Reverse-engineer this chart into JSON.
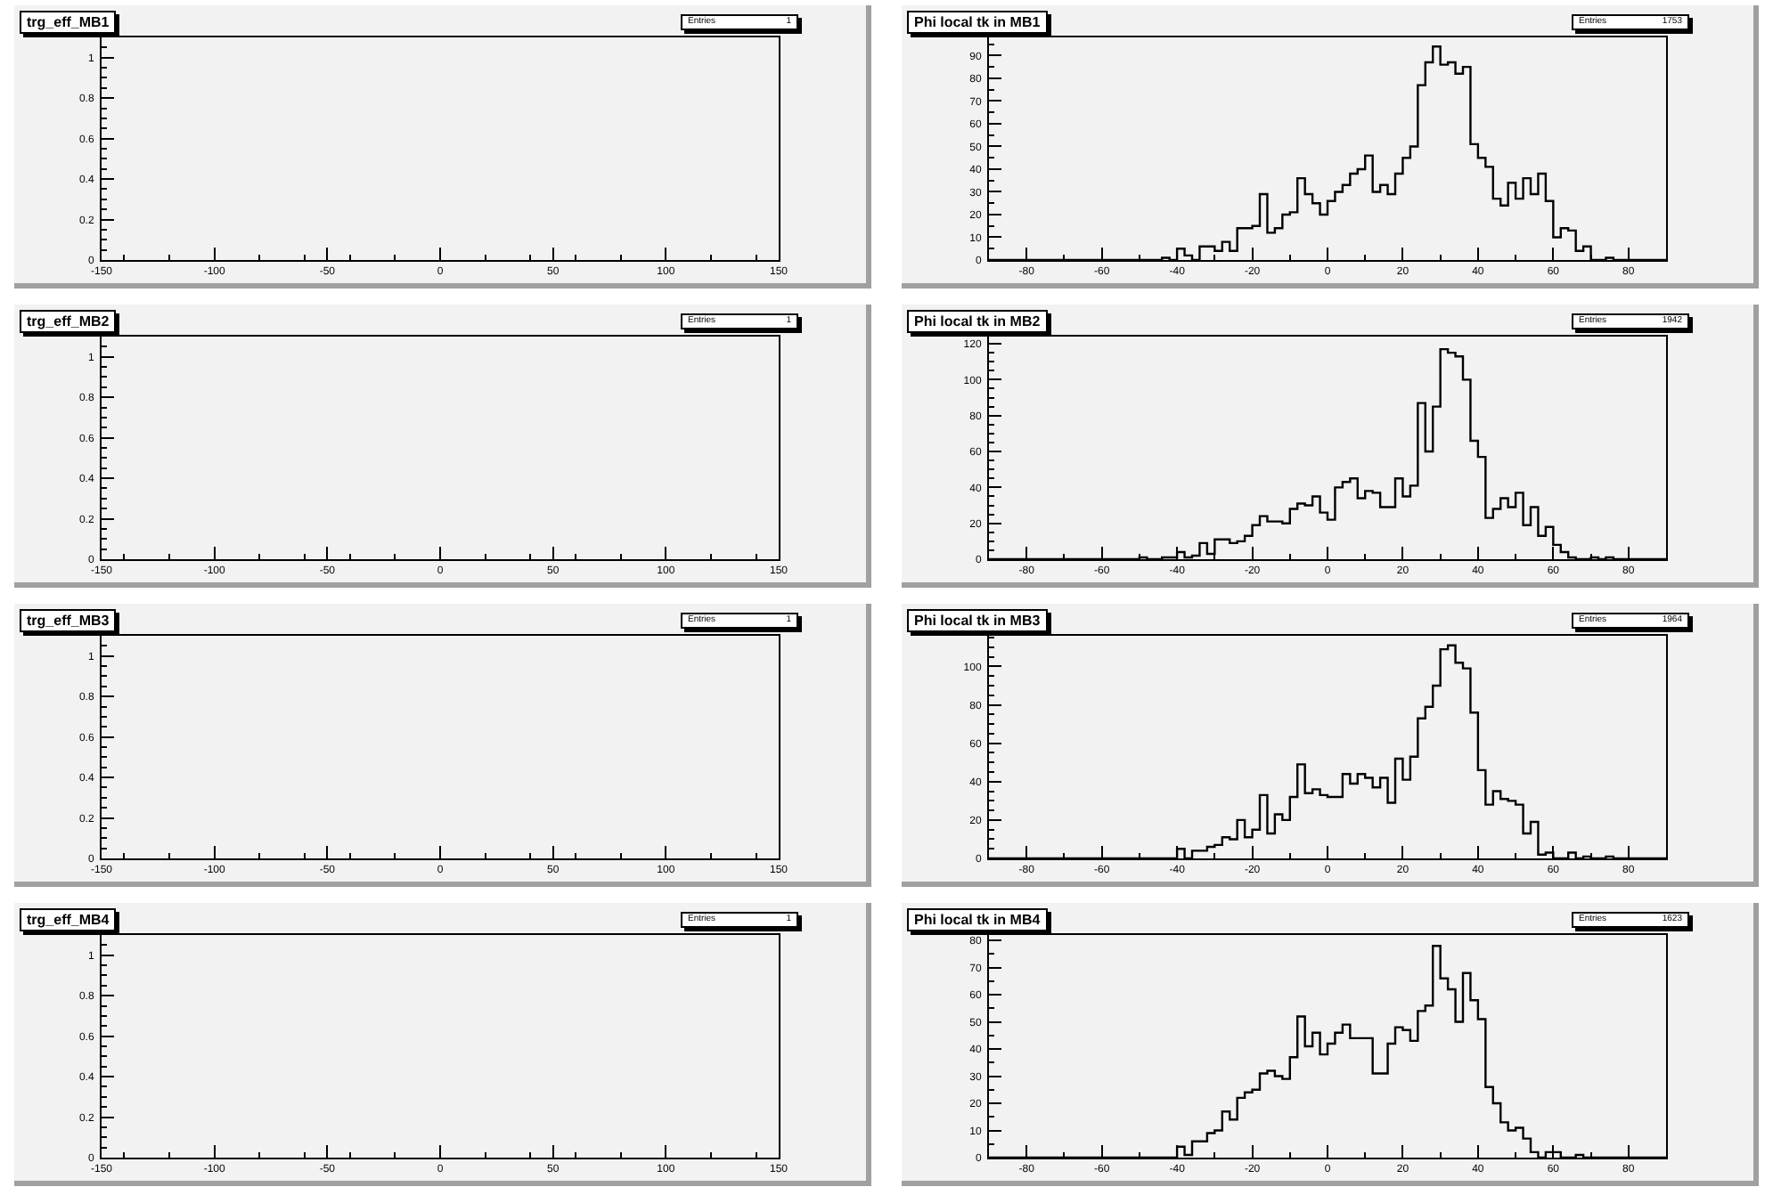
{
  "chart_data": [
    {
      "type": "histogram",
      "title": "trg_eff_MB1",
      "xlim": [
        -150,
        150
      ],
      "xticks": [
        -150,
        -100,
        -50,
        0,
        50,
        100,
        150
      ],
      "ylim": [
        0,
        1.1
      ],
      "yticks": [
        0,
        0.2,
        0.4,
        0.6,
        0.8,
        1
      ],
      "annotations": [
        "Entries",
        "1"
      ]
    },
    {
      "type": "histogram",
      "title": "Phi local tk in MB1",
      "bins": [
        -90,
        -88,
        -86,
        -84,
        -82,
        -80,
        -78,
        -76,
        -74,
        -72,
        -70,
        -68,
        -66,
        -64,
        -62,
        -60,
        -58,
        -56,
        -54,
        -52,
        -50,
        -48,
        -46,
        -44,
        -42,
        -40,
        -38,
        -36,
        -34,
        -32,
        -30,
        -28,
        -26,
        -24,
        -22,
        -20,
        -18,
        -16,
        -14,
        -12,
        -10,
        -8,
        -6,
        -4,
        -2,
        0,
        2,
        4,
        6,
        8,
        10,
        12,
        14,
        16,
        18,
        20,
        22,
        24,
        26,
        28,
        30,
        32,
        34,
        36,
        38,
        40,
        42,
        44,
        46,
        48,
        50,
        52,
        54,
        56,
        58,
        60,
        62,
        64,
        66,
        68,
        70,
        72,
        74,
        76,
        78,
        80,
        82,
        84,
        86,
        88,
        90
      ],
      "values": [
        0,
        0,
        0,
        0,
        0,
        0,
        0,
        0,
        0,
        0,
        0,
        0,
        0,
        0,
        0,
        0,
        0,
        0,
        0,
        0,
        0,
        0,
        0,
        1,
        0,
        5,
        2,
        0,
        6,
        6,
        4,
        8,
        4,
        14,
        14,
        15,
        29,
        12,
        14,
        20,
        21,
        36,
        29,
        25,
        20,
        26,
        30,
        33,
        38,
        40,
        46,
        30,
        33,
        29,
        38,
        45,
        50,
        77,
        87,
        94,
        86,
        87,
        82,
        85,
        51,
        45,
        41,
        27,
        24,
        34,
        27,
        36,
        29,
        38,
        26,
        10,
        14,
        13,
        4,
        6,
        0,
        0,
        1,
        0,
        0,
        0,
        0,
        0,
        0,
        0
      ],
      "color": "#000000",
      "xlim": [
        -90,
        90
      ],
      "xticks": [
        -80,
        -60,
        -40,
        -20,
        0,
        20,
        40,
        60,
        80
      ],
      "ylim": [
        0,
        98
      ],
      "yticks": [
        0,
        10,
        20,
        30,
        40,
        50,
        60,
        70,
        80,
        90
      ],
      "annotations": [
        "Entries",
        "1753"
      ]
    },
    {
      "type": "histogram",
      "title": "trg_eff_MB2",
      "xlim": [
        -150,
        150
      ],
      "xticks": [
        -150,
        -100,
        -50,
        0,
        50,
        100,
        150
      ],
      "ylim": [
        0,
        1.1
      ],
      "yticks": [
        0,
        0.2,
        0.4,
        0.6,
        0.8,
        1
      ],
      "annotations": [
        "Entries",
        "1"
      ]
    },
    {
      "type": "histogram",
      "title": "Phi local tk in MB2",
      "bins": [
        -90,
        -88,
        -86,
        -84,
        -82,
        -80,
        -78,
        -76,
        -74,
        -72,
        -70,
        -68,
        -66,
        -64,
        -62,
        -60,
        -58,
        -56,
        -54,
        -52,
        -50,
        -48,
        -46,
        -44,
        -42,
        -40,
        -38,
        -36,
        -34,
        -32,
        -30,
        -28,
        -26,
        -24,
        -22,
        -20,
        -18,
        -16,
        -14,
        -12,
        -10,
        -8,
        -6,
        -4,
        -2,
        0,
        2,
        4,
        6,
        8,
        10,
        12,
        14,
        16,
        18,
        20,
        22,
        24,
        26,
        28,
        30,
        32,
        34,
        36,
        38,
        40,
        42,
        44,
        46,
        48,
        50,
        52,
        54,
        56,
        58,
        60,
        62,
        64,
        66,
        68,
        70,
        72,
        74,
        76,
        78,
        80,
        82,
        84,
        86,
        88,
        90
      ],
      "values": [
        0,
        0,
        0,
        0,
        0,
        0,
        0,
        0,
        0,
        0,
        0,
        0,
        0,
        0,
        0,
        0,
        0,
        0,
        0,
        0,
        1,
        0,
        0,
        1,
        1,
        4,
        1,
        2,
        9,
        3,
        11,
        11,
        9,
        10,
        13,
        19,
        24,
        21,
        21,
        20,
        28,
        31,
        30,
        35,
        26,
        22,
        40,
        43,
        45,
        34,
        38,
        37,
        29,
        29,
        45,
        35,
        41,
        87,
        60,
        85,
        117,
        115,
        113,
        100,
        66,
        57,
        23,
        28,
        34,
        29,
        37,
        19,
        29,
        13,
        18,
        8,
        4,
        1,
        0,
        0,
        1,
        0,
        1,
        0,
        0,
        0,
        0,
        0,
        0,
        0
      ],
      "color": "#000000",
      "xlim": [
        -90,
        90
      ],
      "xticks": [
        -80,
        -60,
        -40,
        -20,
        0,
        20,
        40,
        60,
        80
      ],
      "ylim": [
        0,
        124
      ],
      "yticks": [
        0,
        20,
        40,
        60,
        80,
        100,
        120
      ],
      "annotations": [
        "Entries",
        "1942"
      ]
    },
    {
      "type": "histogram",
      "title": "trg_eff_MB3",
      "xlim": [
        -150,
        150
      ],
      "xticks": [
        -150,
        -100,
        -50,
        0,
        50,
        100,
        150
      ],
      "ylim": [
        0,
        1.1
      ],
      "yticks": [
        0,
        0.2,
        0.4,
        0.6,
        0.8,
        1
      ],
      "annotations": [
        "Entries",
        "1"
      ]
    },
    {
      "type": "histogram",
      "title": "Phi local tk in MB3",
      "bins": [
        -90,
        -88,
        -86,
        -84,
        -82,
        -80,
        -78,
        -76,
        -74,
        -72,
        -70,
        -68,
        -66,
        -64,
        -62,
        -60,
        -58,
        -56,
        -54,
        -52,
        -50,
        -48,
        -46,
        -44,
        -42,
        -40,
        -38,
        -36,
        -34,
        -32,
        -30,
        -28,
        -26,
        -24,
        -22,
        -20,
        -18,
        -16,
        -14,
        -12,
        -10,
        -8,
        -6,
        -4,
        -2,
        0,
        2,
        4,
        6,
        8,
        10,
        12,
        14,
        16,
        18,
        20,
        22,
        24,
        26,
        28,
        30,
        32,
        34,
        36,
        38,
        40,
        42,
        44,
        46,
        48,
        50,
        52,
        54,
        56,
        58,
        60,
        62,
        64,
        66,
        68,
        70,
        72,
        74,
        76,
        78,
        80,
        82,
        84,
        86,
        88,
        90
      ],
      "values": [
        0,
        0,
        0,
        0,
        0,
        0,
        0,
        0,
        0,
        0,
        0,
        0,
        0,
        0,
        0,
        0,
        0,
        0,
        0,
        0,
        0,
        0,
        0,
        0,
        0,
        5,
        0,
        4,
        4,
        6,
        7,
        11,
        10,
        20,
        11,
        15,
        33,
        13,
        23,
        20,
        32,
        49,
        34,
        36,
        33,
        32,
        32,
        44,
        39,
        44,
        42,
        37,
        42,
        29,
        52,
        41,
        53,
        73,
        79,
        90,
        109,
        111,
        102,
        99,
        76,
        46,
        28,
        35,
        31,
        30,
        28,
        13,
        19,
        2,
        3,
        0,
        0,
        3,
        0,
        1,
        0,
        0,
        1,
        0,
        0,
        0,
        0,
        0,
        0,
        0
      ],
      "color": "#000000",
      "xlim": [
        -90,
        90
      ],
      "xticks": [
        -80,
        -60,
        -40,
        -20,
        0,
        20,
        40,
        60,
        80
      ],
      "ylim": [
        0,
        116
      ],
      "yticks": [
        0,
        20,
        40,
        60,
        80,
        100
      ],
      "annotations": [
        "Entries",
        "1964"
      ]
    },
    {
      "type": "histogram",
      "title": "trg_eff_MB4",
      "xlim": [
        -150,
        150
      ],
      "xticks": [
        -150,
        -100,
        -50,
        0,
        50,
        100,
        150
      ],
      "ylim": [
        0,
        1.1
      ],
      "yticks": [
        0,
        0.2,
        0.4,
        0.6,
        0.8,
        1
      ],
      "annotations": [
        "Entries",
        "1"
      ]
    },
    {
      "type": "histogram",
      "title": "Phi local tk in MB4",
      "bins": [
        -90,
        -88,
        -86,
        -84,
        -82,
        -80,
        -78,
        -76,
        -74,
        -72,
        -70,
        -68,
        -66,
        -64,
        -62,
        -60,
        -58,
        -56,
        -54,
        -52,
        -50,
        -48,
        -46,
        -44,
        -42,
        -40,
        -38,
        -36,
        -34,
        -32,
        -30,
        -28,
        -26,
        -24,
        -22,
        -20,
        -18,
        -16,
        -14,
        -12,
        -10,
        -8,
        -6,
        -4,
        -2,
        0,
        2,
        4,
        6,
        8,
        10,
        12,
        14,
        16,
        18,
        20,
        22,
        24,
        26,
        28,
        30,
        32,
        34,
        36,
        38,
        40,
        42,
        44,
        46,
        48,
        50,
        52,
        54,
        56,
        58,
        60,
        62,
        64,
        66,
        68,
        70,
        72,
        74,
        76,
        78,
        80,
        82,
        84,
        86,
        88,
        90
      ],
      "values": [
        0,
        0,
        0,
        0,
        0,
        0,
        0,
        0,
        0,
        0,
        0,
        0,
        0,
        0,
        0,
        0,
        0,
        0,
        0,
        0,
        0,
        0,
        0,
        0,
        0,
        4,
        1,
        6,
        6,
        9,
        10,
        17,
        14,
        22,
        24,
        25,
        31,
        32,
        30,
        29,
        37,
        52,
        41,
        46,
        38,
        42,
        46,
        49,
        44,
        44,
        44,
        31,
        31,
        42,
        48,
        47,
        43,
        54,
        56,
        78,
        66,
        62,
        50,
        68,
        58,
        51,
        26,
        20,
        13,
        10,
        11,
        7,
        2,
        0,
        2,
        2,
        0,
        0,
        1,
        0,
        0,
        0,
        0,
        0,
        0,
        0,
        0,
        0,
        0,
        0
      ],
      "color": "#000000",
      "xlim": [
        -90,
        90
      ],
      "xticks": [
        -80,
        -60,
        -40,
        -20,
        0,
        20,
        40,
        60,
        80
      ],
      "ylim": [
        0,
        82
      ],
      "yticks": [
        0,
        10,
        20,
        30,
        40,
        50,
        60,
        70,
        80
      ],
      "annotations": [
        "Entries",
        "1623"
      ]
    }
  ]
}
